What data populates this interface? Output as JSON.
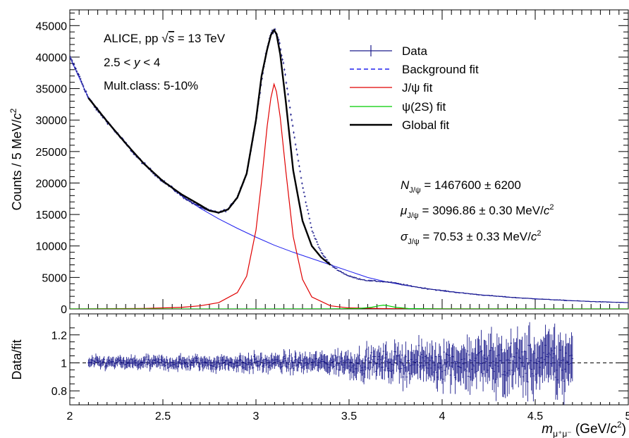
{
  "chart_data": [
    {
      "panel": "main",
      "type": "line",
      "ylabel": "Counts / 5 MeV/c²",
      "ylabel_parts": [
        "Counts / 5 MeV/",
        "c",
        "2"
      ],
      "xlim": [
        2.0,
        5.0
      ],
      "ylim": [
        0,
        47500
      ],
      "yticks": [
        0,
        5000,
        10000,
        15000,
        20000,
        25000,
        30000,
        35000,
        40000,
        45000
      ],
      "grid": false,
      "annotations": {
        "experiment": [
          "ALICE, pp ",
          "s",
          " = 13 TeV"
        ],
        "rapidity": [
          "2.5 < ",
          "y",
          " < 4"
        ],
        "multiplicity": "Mult.class: 5-10%"
      },
      "fit_results": {
        "n_jpsi": {
          "symbol": "N",
          "sub": "J/ψ",
          "text": " = 1467600 ± 6200"
        },
        "mu_jpsi": {
          "symbol": "μ",
          "sub": "J/ψ",
          "text": " = 3096.86 ± 0.30 MeV/",
          "unit_c": "c",
          "unit_exp": "2"
        },
        "sigma_jpsi": {
          "symbol": "σ",
          "sub": "J/ψ",
          "text": " = 70.53 ± 0.33 MeV/",
          "unit_c": "c",
          "unit_exp": "2"
        }
      },
      "legend_position": "top-right",
      "series": [
        {
          "name": "Data",
          "color": "#1c1c8c",
          "style": "points-with-errorbars",
          "x": [
            2.0,
            2.05,
            2.1,
            2.15,
            2.2,
            2.25,
            2.3,
            2.35,
            2.4,
            2.45,
            2.5,
            2.55,
            2.6,
            2.65,
            2.7,
            2.75,
            2.8,
            2.85,
            2.9,
            2.95,
            3.0,
            3.05,
            3.08,
            3.1,
            3.12,
            3.15,
            3.2,
            3.25,
            3.3,
            3.35,
            3.4,
            3.45,
            3.5,
            3.55,
            3.6,
            3.65,
            3.7,
            3.75,
            3.8,
            3.9,
            4.0,
            4.1,
            4.2,
            4.3,
            4.4,
            4.5,
            4.6,
            4.7,
            4.8,
            4.9,
            5.0
          ],
          "y": [
            40000,
            37000,
            33500,
            31500,
            29800,
            28000,
            26300,
            24500,
            23000,
            21600,
            20300,
            19200,
            18000,
            17000,
            16200,
            15600,
            15300,
            15800,
            17800,
            21500,
            30000,
            40000,
            43800,
            44500,
            43000,
            38500,
            28500,
            19500,
            12600,
            9000,
            7000,
            6000,
            5200,
            4800,
            4500,
            4400,
            4300,
            4100,
            3800,
            3300,
            2900,
            2550,
            2250,
            2000,
            1780,
            1600,
            1450,
            1300,
            1180,
            1080,
            1000
          ]
        },
        {
          "name": "Background fit",
          "color": "#2020ee",
          "style": "dashed",
          "x": [
            2.0,
            2.1,
            2.2,
            2.3,
            2.4,
            2.5,
            2.6,
            2.7,
            2.8,
            2.9,
            3.0,
            3.1,
            3.2,
            3.3,
            3.4,
            3.5,
            3.6,
            3.7,
            3.8,
            3.9,
            4.0,
            4.2,
            4.4,
            4.6,
            4.8,
            5.0
          ],
          "y": [
            40000,
            33500,
            29800,
            26300,
            23000,
            20300,
            18000,
            16000,
            14300,
            12800,
            11400,
            10100,
            9000,
            8000,
            7000,
            6000,
            5000,
            4300,
            3750,
            3300,
            2900,
            2250,
            1780,
            1450,
            1180,
            1000
          ]
        },
        {
          "name": "J/ψ fit",
          "color": "#e00000",
          "style": "solid",
          "x": [
            2.0,
            2.4,
            2.6,
            2.7,
            2.8,
            2.9,
            2.95,
            3.0,
            3.03,
            3.06,
            3.08,
            3.097,
            3.11,
            3.13,
            3.16,
            3.2,
            3.25,
            3.3,
            3.4,
            3.5,
            3.7,
            4.0,
            5.0
          ],
          "y": [
            0,
            80,
            250,
            500,
            1000,
            2600,
            5200,
            12500,
            20200,
            29000,
            33500,
            35700,
            34500,
            30500,
            22000,
            11500,
            4700,
            1900,
            500,
            150,
            50,
            15,
            0
          ]
        },
        {
          "name": "ψ(2S) fit",
          "color": "#00cc00",
          "style": "solid",
          "x": [
            2.0,
            3.4,
            3.55,
            3.62,
            3.66,
            3.686,
            3.71,
            3.75,
            3.82,
            3.95,
            5.0
          ],
          "y": [
            0,
            10,
            60,
            250,
            500,
            600,
            500,
            250,
            60,
            10,
            0
          ]
        },
        {
          "name": "Global fit",
          "color": "#000000",
          "style": "solid-thick",
          "x": [
            2.1,
            2.2,
            2.3,
            2.4,
            2.5,
            2.6,
            2.7,
            2.75,
            2.8,
            2.85,
            2.9,
            2.95,
            3.0,
            3.03,
            3.06,
            3.08,
            3.097,
            3.11,
            3.13,
            3.16,
            3.2,
            3.25,
            3.3,
            3.35,
            3.4
          ],
          "y": [
            33500,
            29800,
            26300,
            23000,
            20300,
            18200,
            16500,
            15600,
            15300,
            15800,
            17700,
            21500,
            30000,
            37000,
            41200,
            43500,
            44300,
            43700,
            40500,
            33000,
            22000,
            14000,
            10000,
            8200,
            7000
          ]
        }
      ]
    },
    {
      "panel": "ratio",
      "type": "scatter",
      "ylabel": "Data/fit",
      "xlabel_parts": [
        "m",
        "μ⁺μ⁻",
        " (GeV/",
        "c",
        "2",
        ")"
      ],
      "xlim": [
        2.0,
        5.0
      ],
      "ylim": [
        0.7,
        1.35
      ],
      "yticks": [
        0.8,
        1.0,
        1.2
      ],
      "xticks": [
        2,
        2.5,
        3,
        3.5,
        4,
        4.5,
        5
      ],
      "reference_line": 1.0,
      "data_range": [
        2.1,
        4.7
      ],
      "scatter_envelope": {
        "x": [
          2.1,
          2.8,
          3.3,
          3.8,
          4.2,
          4.7
        ],
        "spread": [
          0.03,
          0.04,
          0.05,
          0.09,
          0.13,
          0.17
        ]
      }
    }
  ]
}
